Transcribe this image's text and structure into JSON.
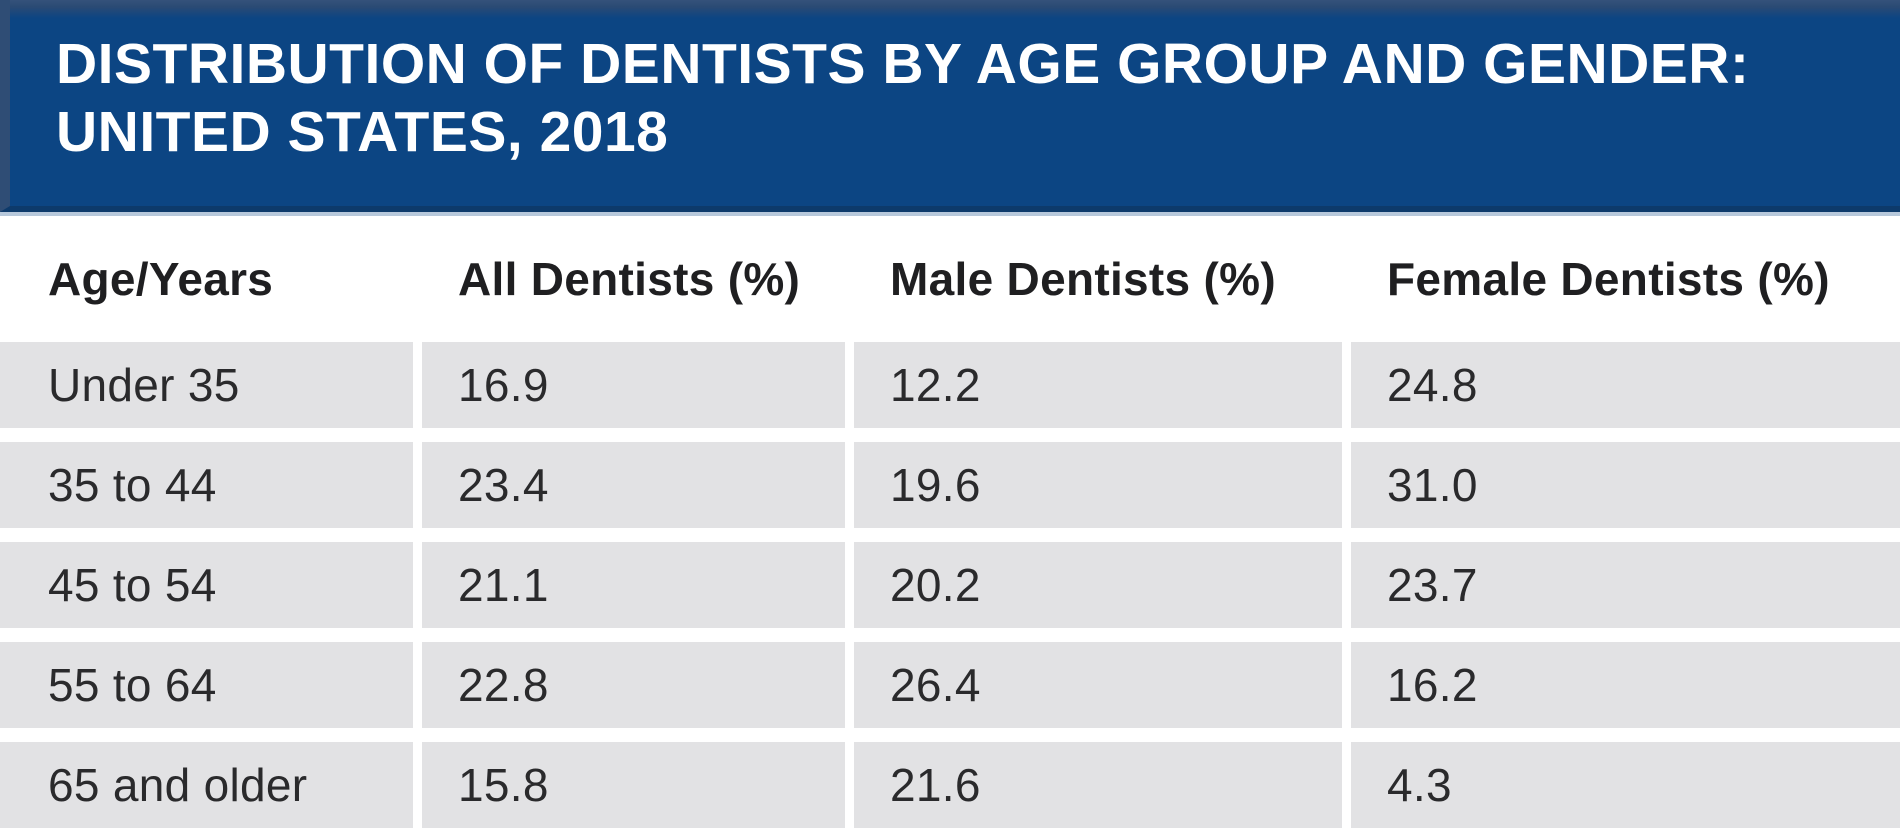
{
  "title": {
    "line1": "DISTRIBUTION OF DENTISTS BY AGE GROUP AND GENDER:",
    "line2": "UNITED STATES, 2018"
  },
  "table": {
    "columns": [
      "Age/Years",
      "All Dentists (%)",
      "Male Dentists (%)",
      "Female Dentists (%)"
    ],
    "rows": [
      [
        "Under 35",
        "16.9",
        "12.2",
        "24.8"
      ],
      [
        "35 to 44",
        "23.4",
        "19.6",
        "31.0"
      ],
      [
        "45 to 54",
        "21.1",
        "20.2",
        "23.7"
      ],
      [
        "55 to 64",
        "22.8",
        "26.4",
        "16.2"
      ],
      [
        "65 and older",
        "15.8",
        "21.6",
        "4.3"
      ]
    ]
  },
  "colors": {
    "banner_bg": "#0c4583",
    "banner_edge": "#2f4d75",
    "banner_bottom_border": "#0d3a6b",
    "banner_underline": "#b7c8db",
    "title_text": "#ffffff",
    "row_bg": "#e2e2e4",
    "body_text": "#2a2a2c",
    "gutter": "#ffffff"
  },
  "chart_data": {
    "type": "table",
    "title": "DISTRIBUTION OF DENTISTS BY AGE GROUP AND GENDER: UNITED STATES, 2018",
    "columns": [
      "Age/Years",
      "All Dentists (%)",
      "Male Dentists (%)",
      "Female Dentists (%)"
    ],
    "categories": [
      "Under 35",
      "35 to 44",
      "45 to 54",
      "55 to 64",
      "65 and older"
    ],
    "series": [
      {
        "name": "All Dentists (%)",
        "values": [
          16.9,
          23.4,
          21.1,
          22.8,
          15.8
        ]
      },
      {
        "name": "Male Dentists (%)",
        "values": [
          12.2,
          19.6,
          20.2,
          26.4,
          21.6
        ]
      },
      {
        "name": "Female Dentists (%)",
        "values": [
          24.8,
          31.0,
          23.7,
          16.2,
          4.3
        ]
      }
    ],
    "units": "percent",
    "layout": "header band top, zebra-free gray rows with white gutters, no grid lines"
  }
}
